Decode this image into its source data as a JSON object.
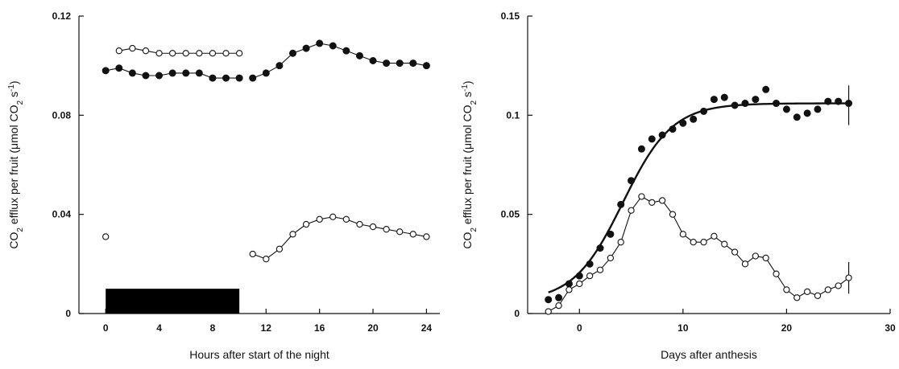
{
  "chart_data": [
    {
      "type": "scatter",
      "xlabel": "Hours after start of the night",
      "ylabel_parts": [
        "CO",
        "2",
        " efflux per fruit (μmol CO",
        "2",
        " s",
        "-1",
        ")"
      ],
      "xlim": [
        -2,
        25
      ],
      "ylim": [
        0,
        0.12
      ],
      "xticks": [
        0,
        4,
        8,
        12,
        16,
        20,
        24
      ],
      "xtick_labels": [
        "0",
        "4",
        "8",
        "12",
        "16",
        "20",
        "24"
      ],
      "yticks": [
        0,
        0.04,
        0.08,
        0.12
      ],
      "ytick_labels": [
        "0",
        "0.04",
        "0.08",
        "0.12"
      ],
      "night_bar": {
        "x_start": 0,
        "x_end": 10,
        "y_start": 0,
        "y_end": 0.01
      },
      "series": [
        {
          "marker": "filled",
          "connected": true,
          "points": [
            [
              0,
              0.098
            ],
            [
              1,
              0.099
            ],
            [
              2,
              0.097
            ],
            [
              3,
              0.096
            ],
            [
              4,
              0.096
            ],
            [
              5,
              0.097
            ],
            [
              6,
              0.097
            ],
            [
              7,
              0.097
            ],
            [
              8,
              0.095
            ],
            [
              9,
              0.095
            ],
            [
              10,
              0.095
            ]
          ]
        },
        {
          "marker": "filled",
          "connected": true,
          "points": [
            [
              11,
              0.095
            ],
            [
              12,
              0.097
            ],
            [
              13,
              0.1
            ],
            [
              14,
              0.105
            ],
            [
              15,
              0.107
            ],
            [
              16,
              0.109
            ],
            [
              17,
              0.108
            ],
            [
              18,
              0.106
            ],
            [
              19,
              0.104
            ],
            [
              20,
              0.102
            ],
            [
              21,
              0.101
            ],
            [
              22,
              0.101
            ],
            [
              23,
              0.101
            ],
            [
              24,
              0.1
            ]
          ]
        },
        {
          "marker": "open",
          "connected": true,
          "points": [
            [
              1,
              0.106
            ],
            [
              2,
              0.107
            ],
            [
              3,
              0.106
            ],
            [
              4,
              0.105
            ],
            [
              5,
              0.105
            ],
            [
              6,
              0.105
            ],
            [
              7,
              0.105
            ],
            [
              8,
              0.105
            ],
            [
              9,
              0.105
            ],
            [
              10,
              0.105
            ]
          ]
        },
        {
          "marker": "open",
          "connected": false,
          "points": [
            [
              0,
              0.031
            ]
          ]
        },
        {
          "marker": "open",
          "connected": true,
          "points": [
            [
              11,
              0.024
            ],
            [
              12,
              0.022
            ],
            [
              13,
              0.026
            ],
            [
              14,
              0.032
            ],
            [
              15,
              0.036
            ],
            [
              16,
              0.038
            ],
            [
              17,
              0.039
            ],
            [
              18,
              0.038
            ],
            [
              19,
              0.036
            ],
            [
              20,
              0.035
            ],
            [
              21,
              0.034
            ],
            [
              22,
              0.033
            ],
            [
              23,
              0.032
            ],
            [
              24,
              0.031
            ]
          ]
        }
      ]
    },
    {
      "type": "scatter",
      "xlabel": "Days after anthesis",
      "ylabel_parts": [
        "CO",
        "2",
        " efflux per fruit (μmol CO",
        "2",
        " s",
        "-1",
        ")"
      ],
      "xlim": [
        -5,
        30
      ],
      "ylim": [
        0,
        0.15
      ],
      "xticks": [
        0,
        10,
        20,
        30
      ],
      "xtick_labels": [
        "0",
        "10",
        "20",
        "30"
      ],
      "yticks": [
        0,
        0.05,
        0.1,
        0.15
      ],
      "ytick_labels": [
        "0",
        "0.05",
        "0.1",
        "0.15"
      ],
      "fit_curve": {
        "model": "logistic",
        "lower": 0.006,
        "upper": 0.106,
        "x_mid": 4.2,
        "slope": 0.42,
        "x_from": -3,
        "x_to": 26
      },
      "error_bars": [
        {
          "x": 26,
          "y_low": 0.095,
          "y_high": 0.115
        },
        {
          "x": 26,
          "y_low": 0.01,
          "y_high": 0.026
        }
      ],
      "series": [
        {
          "marker": "filled",
          "connected": false,
          "points": [
            [
              -3,
              0.007
            ],
            [
              -2,
              0.008
            ],
            [
              -1,
              0.015
            ],
            [
              0,
              0.019
            ],
            [
              1,
              0.025
            ],
            [
              2,
              0.033
            ],
            [
              3,
              0.04
            ],
            [
              4,
              0.055
            ],
            [
              5,
              0.067
            ],
            [
              6,
              0.083
            ],
            [
              7,
              0.088
            ],
            [
              8,
              0.09
            ],
            [
              9,
              0.093
            ],
            [
              10,
              0.096
            ],
            [
              11,
              0.098
            ],
            [
              12,
              0.102
            ],
            [
              13,
              0.108
            ],
            [
              14,
              0.109
            ],
            [
              15,
              0.105
            ],
            [
              16,
              0.106
            ],
            [
              17,
              0.108
            ],
            [
              18,
              0.113
            ],
            [
              19,
              0.106
            ],
            [
              20,
              0.103
            ],
            [
              21,
              0.099
            ],
            [
              22,
              0.101
            ],
            [
              23,
              0.103
            ],
            [
              24,
              0.107
            ],
            [
              25,
              0.107
            ],
            [
              26,
              0.106
            ]
          ]
        },
        {
          "marker": "open",
          "connected": true,
          "points": [
            [
              -3,
              0.001
            ],
            [
              -2,
              0.004
            ],
            [
              -1,
              0.012
            ],
            [
              0,
              0.015
            ],
            [
              1,
              0.019
            ],
            [
              2,
              0.022
            ],
            [
              3,
              0.028
            ],
            [
              4,
              0.036
            ],
            [
              5,
              0.052
            ],
            [
              6,
              0.059
            ],
            [
              7,
              0.056
            ],
            [
              8,
              0.057
            ],
            [
              9,
              0.05
            ],
            [
              10,
              0.04
            ],
            [
              11,
              0.036
            ],
            [
              12,
              0.036
            ],
            [
              13,
              0.039
            ],
            [
              14,
              0.035
            ],
            [
              15,
              0.031
            ],
            [
              16,
              0.025
            ],
            [
              17,
              0.029
            ],
            [
              18,
              0.028
            ],
            [
              19,
              0.02
            ],
            [
              20,
              0.012
            ],
            [
              21,
              0.008
            ],
            [
              22,
              0.011
            ],
            [
              23,
              0.009
            ],
            [
              24,
              0.012
            ],
            [
              25,
              0.014
            ],
            [
              26,
              0.018
            ]
          ]
        }
      ]
    }
  ]
}
